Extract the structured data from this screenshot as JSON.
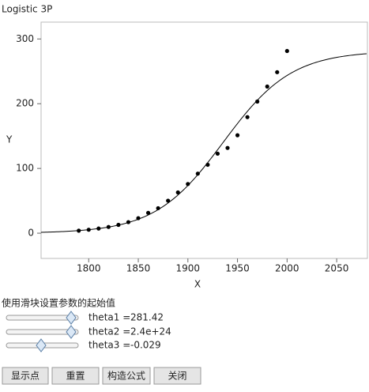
{
  "chart_data": {
    "type": "scatter",
    "title": "Logistic 3P",
    "x_label": "X",
    "y_label": "Y",
    "x": [
      1790,
      1800,
      1810,
      1820,
      1830,
      1840,
      1850,
      1860,
      1870,
      1880,
      1890,
      1900,
      1910,
      1920,
      1930,
      1940,
      1950,
      1960,
      1970,
      1980,
      1990,
      2000
    ],
    "values": [
      3.9,
      5.3,
      7.2,
      9.6,
      12.9,
      17.1,
      23.2,
      31.4,
      38.6,
      50.2,
      62.9,
      76.0,
      92.0,
      105.7,
      122.8,
      131.7,
      151.3,
      179.3,
      203.3,
      226.5,
      248.7,
      281.4
    ],
    "color": "#000000",
    "xlim": [
      1752,
      2081
    ],
    "xticks": [
      1800,
      1850,
      1900,
      1950,
      2000,
      2050
    ],
    "ylim": [
      -39,
      326
    ],
    "yticks": [
      0,
      100,
      200,
      300
    ]
  },
  "panel": {
    "heading": "使用滑块设置参数的起始值",
    "sliders": [
      {
        "label": "theta1 =",
        "value": 281.42
      },
      {
        "label": "theta2 =",
        "value": 2.4e+24
      },
      {
        "label": "theta3 =",
        "value": -0.029
      }
    ],
    "buttons": [
      "显示点",
      "重置",
      "构造公式",
      "关闭"
    ]
  }
}
